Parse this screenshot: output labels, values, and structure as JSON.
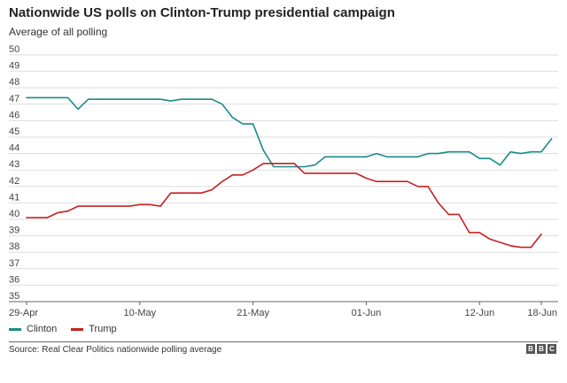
{
  "header": {
    "title": "Nationwide US polls on Clinton-Trump presidential campaign",
    "subtitle": "Average of all polling"
  },
  "source": "Source: Real Clear Politics nationwide polling average",
  "logo": {
    "letters": [
      "B",
      "B",
      "C"
    ]
  },
  "colors": {
    "clinton": "#1a8a8c",
    "trump": "#c62020",
    "grid": "#dddddd",
    "axis": "#666666"
  },
  "chart_data": {
    "type": "line",
    "title": "Nationwide US polls on Clinton-Trump presidential campaign",
    "subtitle": "Average of all polling",
    "ylim": [
      35,
      50
    ],
    "yticks": [
      35,
      36,
      37,
      38,
      39,
      40,
      41,
      42,
      43,
      44,
      45,
      46,
      47,
      48,
      49,
      50
    ],
    "xlim": [
      "2016-04-29",
      "2016-06-18"
    ],
    "xticks": [
      {
        "date": "2016-04-29",
        "label": "29-Apr"
      },
      {
        "date": "2016-05-10",
        "label": "10-May"
      },
      {
        "date": "2016-05-21",
        "label": "21-May"
      },
      {
        "date": "2016-06-01",
        "label": "01-Jun"
      },
      {
        "date": "2016-06-12",
        "label": "12-Jun"
      },
      {
        "date": "2016-06-18",
        "label": "18-Jun"
      }
    ],
    "grid": "horizontal",
    "legend_position": "bottom-left",
    "series": [
      {
        "name": "Clinton",
        "color": "#1a8a8c",
        "points": [
          [
            "2016-04-29",
            47.4
          ],
          [
            "2016-05-01",
            47.4
          ],
          [
            "2016-05-02",
            47.4
          ],
          [
            "2016-05-03",
            47.4
          ],
          [
            "2016-05-04",
            46.7
          ],
          [
            "2016-05-05",
            47.3
          ],
          [
            "2016-05-06",
            47.3
          ],
          [
            "2016-05-08",
            47.3
          ],
          [
            "2016-05-10",
            47.3
          ],
          [
            "2016-05-12",
            47.3
          ],
          [
            "2016-05-13",
            47.2
          ],
          [
            "2016-05-14",
            47.3
          ],
          [
            "2016-05-16",
            47.3
          ],
          [
            "2016-05-17",
            47.3
          ],
          [
            "2016-05-18",
            47.0
          ],
          [
            "2016-05-19",
            46.2
          ],
          [
            "2016-05-20",
            45.8
          ],
          [
            "2016-05-21",
            45.8
          ],
          [
            "2016-05-22",
            44.2
          ],
          [
            "2016-05-23",
            43.2
          ],
          [
            "2016-05-24",
            43.2
          ],
          [
            "2016-05-26",
            43.2
          ],
          [
            "2016-05-27",
            43.3
          ],
          [
            "2016-05-28",
            43.8
          ],
          [
            "2016-05-29",
            43.8
          ],
          [
            "2016-05-31",
            43.8
          ],
          [
            "2016-06-01",
            43.8
          ],
          [
            "2016-06-02",
            44.0
          ],
          [
            "2016-06-03",
            43.8
          ],
          [
            "2016-06-04",
            43.8
          ],
          [
            "2016-06-05",
            43.8
          ],
          [
            "2016-06-06",
            43.8
          ],
          [
            "2016-06-07",
            44.0
          ],
          [
            "2016-06-08",
            44.0
          ],
          [
            "2016-06-09",
            44.1
          ],
          [
            "2016-06-10",
            44.1
          ],
          [
            "2016-06-11",
            44.1
          ],
          [
            "2016-06-12",
            43.7
          ],
          [
            "2016-06-13",
            43.7
          ],
          [
            "2016-06-14",
            43.3
          ],
          [
            "2016-06-15",
            44.1
          ],
          [
            "2016-06-16",
            44.0
          ],
          [
            "2016-06-17",
            44.1
          ],
          [
            "2016-06-18",
            44.1
          ],
          [
            "2016-06-19",
            44.9
          ]
        ]
      },
      {
        "name": "Trump",
        "color": "#c62020",
        "points": [
          [
            "2016-04-29",
            40.1
          ],
          [
            "2016-05-01",
            40.1
          ],
          [
            "2016-05-02",
            40.4
          ],
          [
            "2016-05-03",
            40.5
          ],
          [
            "2016-05-04",
            40.8
          ],
          [
            "2016-05-06",
            40.8
          ],
          [
            "2016-05-09",
            40.8
          ],
          [
            "2016-05-10",
            40.9
          ],
          [
            "2016-05-11",
            40.9
          ],
          [
            "2016-05-12",
            40.8
          ],
          [
            "2016-05-13",
            41.6
          ],
          [
            "2016-05-15",
            41.6
          ],
          [
            "2016-05-16",
            41.6
          ],
          [
            "2016-05-17",
            41.8
          ],
          [
            "2016-05-18",
            42.3
          ],
          [
            "2016-05-19",
            42.7
          ],
          [
            "2016-05-20",
            42.7
          ],
          [
            "2016-05-21",
            43.0
          ],
          [
            "2016-05-22",
            43.4
          ],
          [
            "2016-05-24",
            43.4
          ],
          [
            "2016-05-25",
            43.4
          ],
          [
            "2016-05-26",
            42.8
          ],
          [
            "2016-05-28",
            42.8
          ],
          [
            "2016-05-30",
            42.8
          ],
          [
            "2016-05-31",
            42.8
          ],
          [
            "2016-06-01",
            42.5
          ],
          [
            "2016-06-02",
            42.3
          ],
          [
            "2016-06-03",
            42.3
          ],
          [
            "2016-06-04",
            42.3
          ],
          [
            "2016-06-05",
            42.3
          ],
          [
            "2016-06-06",
            42.0
          ],
          [
            "2016-06-07",
            42.0
          ],
          [
            "2016-06-08",
            41.0
          ],
          [
            "2016-06-09",
            40.3
          ],
          [
            "2016-06-10",
            40.3
          ],
          [
            "2016-06-11",
            39.2
          ],
          [
            "2016-06-12",
            39.2
          ],
          [
            "2016-06-13",
            38.8
          ],
          [
            "2016-06-14",
            38.6
          ],
          [
            "2016-06-15",
            38.4
          ],
          [
            "2016-06-16",
            38.3
          ],
          [
            "2016-06-17",
            38.3
          ],
          [
            "2016-06-18",
            39.1
          ]
        ]
      }
    ]
  }
}
